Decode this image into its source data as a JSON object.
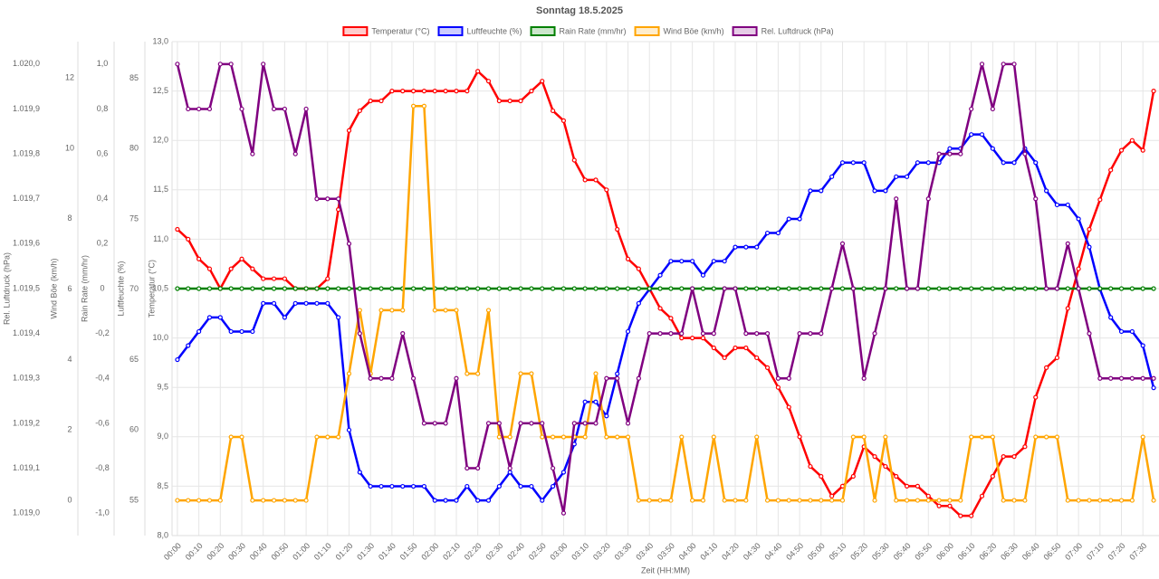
{
  "chart_data": {
    "type": "line",
    "title": "Sonntag 18.5.2025",
    "x_label": "Zeit (HH:MM)",
    "grid": true,
    "legend": "top",
    "categories": [
      "00:00",
      null,
      "00:10",
      null,
      "00:20",
      null,
      "00:30",
      null,
      "00:40",
      null,
      "00:50",
      null,
      "01:00",
      null,
      "01:10",
      null,
      "01:20",
      null,
      "01:30",
      null,
      "01:40",
      null,
      "01:50",
      null,
      "02:00",
      null,
      "02:10",
      null,
      "02:20",
      null,
      "02:30",
      null,
      "02:40",
      null,
      "02:50",
      null,
      "03:00",
      null,
      "03:10",
      null,
      "03:20",
      null,
      "03:30",
      null,
      "03:40",
      null,
      "03:50",
      null,
      "04:00",
      null,
      "04:10",
      null,
      "04:20",
      null,
      "04:30",
      null,
      "04:40",
      null,
      "04:50",
      null,
      "05:00",
      null,
      "05:10",
      null,
      "05:20",
      null,
      "05:30",
      null,
      "05:40",
      null,
      "05:50",
      null,
      "06:00",
      null,
      "06:10",
      null,
      "06:20",
      null,
      "06:30",
      null,
      "06:40",
      null,
      "06:50",
      null,
      "07:00",
      null,
      "07:10",
      null,
      "07:20",
      null,
      "07:30",
      null
    ],
    "y_axes": [
      {
        "id": "y5",
        "label": "Rel. Luftdruck (hPa)",
        "color": "#800080",
        "lim": [
          1018.95,
          1020.05
        ],
        "ticks": [
          {
            "value": 1019,
            "label": "1.019,0"
          },
          {
            "value": 1019.1,
            "label": "1.019,1"
          },
          {
            "value": 1019.2,
            "label": "1.019,2"
          },
          {
            "value": 1019.3,
            "label": "1.019,3"
          },
          {
            "value": 1019.4,
            "label": "1.019,4"
          },
          {
            "value": 1019.5,
            "label": "1.019,5"
          },
          {
            "value": 1019.6,
            "label": "1.019,6"
          },
          {
            "value": 1019.7,
            "label": "1.019,7"
          },
          {
            "value": 1019.8,
            "label": "1.019,8"
          },
          {
            "value": 1019.9,
            "label": "1.019,9"
          },
          {
            "value": 1020,
            "label": "1.020,0"
          }
        ]
      },
      {
        "id": "y4",
        "label": "Wind Böe (km/h)",
        "color": "#ffa500",
        "lim": [
          -1,
          13.03
        ],
        "ticks": [
          0,
          2,
          4,
          6,
          8,
          10,
          12
        ]
      },
      {
        "id": "y3",
        "label": "Rain Rate (mm/hr)",
        "color": "#008000",
        "lim": [
          -1.1,
          1.1
        ],
        "ticks": [
          {
            "value": -1,
            "label": "-1,0"
          },
          {
            "value": -0.8,
            "label": "-0,8"
          },
          {
            "value": -0.6,
            "label": "-0,6"
          },
          {
            "value": -0.4,
            "label": "-0,4"
          },
          {
            "value": -0.2,
            "label": "-0,2"
          },
          0,
          {
            "value": 0.2,
            "label": "0,2"
          },
          {
            "value": 0.4,
            "label": "0,4"
          },
          {
            "value": 0.6,
            "label": "0,6"
          },
          {
            "value": 0.8,
            "label": "0,8"
          },
          {
            "value": 1,
            "label": "1,0"
          }
        ]
      },
      {
        "id": "y2",
        "label": "Luftfeuchte (%)",
        "color": "#0000ff",
        "lim": [
          52.5,
          87.6
        ],
        "ticks": [
          55,
          60,
          65,
          70,
          75,
          80,
          85
        ]
      },
      {
        "id": "y",
        "label": "Temperatur (°C)",
        "color": "#ff0000",
        "lim": [
          8,
          13
        ],
        "ticks": [
          {
            "value": 8,
            "label": "8,0"
          },
          {
            "value": 8.5,
            "label": "8,5"
          },
          {
            "value": 9,
            "label": "9,0"
          },
          {
            "value": 9.5,
            "label": "9,5"
          },
          {
            "value": 10,
            "label": "10,0"
          },
          {
            "value": 10.5,
            "label": "10,5"
          },
          {
            "value": 11,
            "label": "11,0"
          },
          {
            "value": 11.5,
            "label": "11,5"
          },
          {
            "value": 12,
            "label": "12,0"
          },
          {
            "value": 12.5,
            "label": "12,5"
          },
          {
            "value": 13,
            "label": "13,0"
          }
        ]
      }
    ],
    "series": [
      {
        "name": "Temperatur (°C)",
        "color": "#ff0000",
        "axis": "y",
        "values": [
          11.1,
          11.0,
          10.8,
          10.7,
          10.5,
          10.7,
          10.8,
          10.7,
          10.6,
          10.6,
          10.6,
          10.5,
          10.5,
          10.5,
          10.6,
          11.3,
          12.1,
          12.3,
          12.4,
          12.4,
          12.5,
          12.5,
          12.5,
          12.5,
          12.5,
          12.5,
          12.5,
          12.5,
          12.7,
          12.6,
          12.4,
          12.4,
          12.4,
          12.5,
          12.6,
          12.3,
          12.2,
          11.8,
          11.6,
          11.6,
          11.5,
          11.1,
          10.8,
          10.7,
          10.5,
          10.3,
          10.2,
          10.0,
          10.0,
          10.0,
          9.9,
          9.8,
          9.9,
          9.9,
          9.8,
          9.7,
          9.5,
          9.3,
          9.0,
          8.7,
          8.6,
          8.4,
          8.5,
          8.6,
          8.9,
          8.8,
          8.7,
          8.6,
          8.5,
          8.5,
          8.4,
          8.3,
          8.3,
          8.2,
          8.2,
          8.4,
          8.6,
          8.8,
          8.8,
          8.9,
          9.4,
          9.7,
          9.8,
          10.3,
          10.7,
          11.1,
          11.4,
          11.7,
          11.9,
          12.0,
          11.9,
          12.5
        ]
      },
      {
        "name": "Luftfeuchte (%)",
        "color": "#0000ff",
        "axis": "y2",
        "values": [
          65,
          66,
          67,
          68,
          68,
          67,
          67,
          67,
          69,
          69,
          68,
          69,
          69,
          69,
          69,
          68,
          60,
          57,
          56,
          56,
          56,
          56,
          56,
          56,
          55,
          55,
          55,
          56,
          55,
          55,
          56,
          57,
          56,
          56,
          55,
          56,
          57,
          59,
          62,
          62,
          61,
          64,
          67,
          69,
          70,
          71,
          72,
          72,
          72,
          71,
          72,
          72,
          73,
          73,
          73,
          74,
          74,
          75,
          75,
          77,
          77,
          78,
          79,
          79,
          79,
          77,
          77,
          78,
          78,
          79,
          79,
          79,
          80,
          80,
          81,
          81,
          80,
          79,
          79,
          80,
          79,
          77,
          76,
          76,
          75,
          73,
          70,
          68,
          67,
          67,
          66,
          63
        ]
      },
      {
        "name": "Rain Rate (mm/hr)",
        "color": "#008000",
        "axis": "y3",
        "values": [
          0,
          0,
          0,
          0,
          0,
          0,
          0,
          0,
          0,
          0,
          0,
          0,
          0,
          0,
          0,
          0,
          0,
          0,
          0,
          0,
          0,
          0,
          0,
          0,
          0,
          0,
          0,
          0,
          0,
          0,
          0,
          0,
          0,
          0,
          0,
          0,
          0,
          0,
          0,
          0,
          0,
          0,
          0,
          0,
          0,
          0,
          0,
          0,
          0,
          0,
          0,
          0,
          0,
          0,
          0,
          0,
          0,
          0,
          0,
          0,
          0,
          0,
          0,
          0,
          0,
          0,
          0,
          0,
          0,
          0,
          0,
          0,
          0,
          0,
          0,
          0,
          0,
          0,
          0,
          0,
          0,
          0,
          0,
          0,
          0,
          0,
          0,
          0,
          0,
          0,
          0,
          0
        ]
      },
      {
        "name": "Wind Böe (km/h)",
        "color": "#ffa500",
        "axis": "y4",
        "values": [
          0,
          0,
          0,
          0,
          0,
          1.8,
          1.8,
          0,
          0,
          0,
          0,
          0,
          0,
          1.8,
          1.8,
          1.8,
          3.6,
          5.4,
          3.6,
          5.4,
          5.4,
          5.4,
          11.2,
          11.2,
          5.4,
          5.4,
          5.4,
          3.6,
          3.6,
          5.4,
          1.8,
          1.8,
          3.6,
          3.6,
          1.8,
          1.8,
          1.8,
          1.8,
          1.8,
          3.6,
          1.8,
          1.8,
          1.8,
          0,
          0,
          0,
          0,
          1.8,
          0,
          0,
          1.8,
          0,
          0,
          0,
          1.8,
          0,
          0,
          0,
          0,
          0,
          0,
          0,
          0,
          1.8,
          1.8,
          0,
          1.8,
          0,
          0,
          0,
          0,
          0,
          0,
          0,
          1.8,
          1.8,
          1.8,
          0,
          0,
          0,
          1.8,
          1.8,
          1.8,
          0,
          0,
          0,
          0,
          0,
          0,
          0,
          1.8,
          0
        ]
      },
      {
        "name": "Rel. Luftdruck (hPa)",
        "color": "#800080",
        "axis": "y5",
        "values": [
          1020.0,
          1019.9,
          1019.9,
          1019.9,
          1020.0,
          1020.0,
          1019.9,
          1019.8,
          1020.0,
          1019.9,
          1019.9,
          1019.8,
          1019.9,
          1019.7,
          1019.7,
          1019.7,
          1019.6,
          1019.4,
          1019.3,
          1019.3,
          1019.3,
          1019.4,
          1019.3,
          1019.2,
          1019.2,
          1019.2,
          1019.3,
          1019.1,
          1019.1,
          1019.2,
          1019.2,
          1019.1,
          1019.2,
          1019.2,
          1019.2,
          1019.1,
          1019.0,
          1019.2,
          1019.2,
          1019.2,
          1019.3,
          1019.3,
          1019.2,
          1019.3,
          1019.4,
          1019.4,
          1019.4,
          1019.4,
          1019.5,
          1019.4,
          1019.4,
          1019.5,
          1019.5,
          1019.4,
          1019.4,
          1019.4,
          1019.3,
          1019.3,
          1019.4,
          1019.4,
          1019.4,
          1019.5,
          1019.6,
          1019.5,
          1019.3,
          1019.4,
          1019.5,
          1019.7,
          1019.5,
          1019.5,
          1019.7,
          1019.8,
          1019.8,
          1019.8,
          1019.9,
          1020.0,
          1019.9,
          1020.0,
          1020.0,
          1019.8,
          1019.7,
          1019.5,
          1019.5,
          1019.6,
          1019.5,
          1019.4,
          1019.3,
          1019.3,
          1019.3,
          1019.3,
          1019.3,
          1019.3
        ]
      }
    ]
  }
}
